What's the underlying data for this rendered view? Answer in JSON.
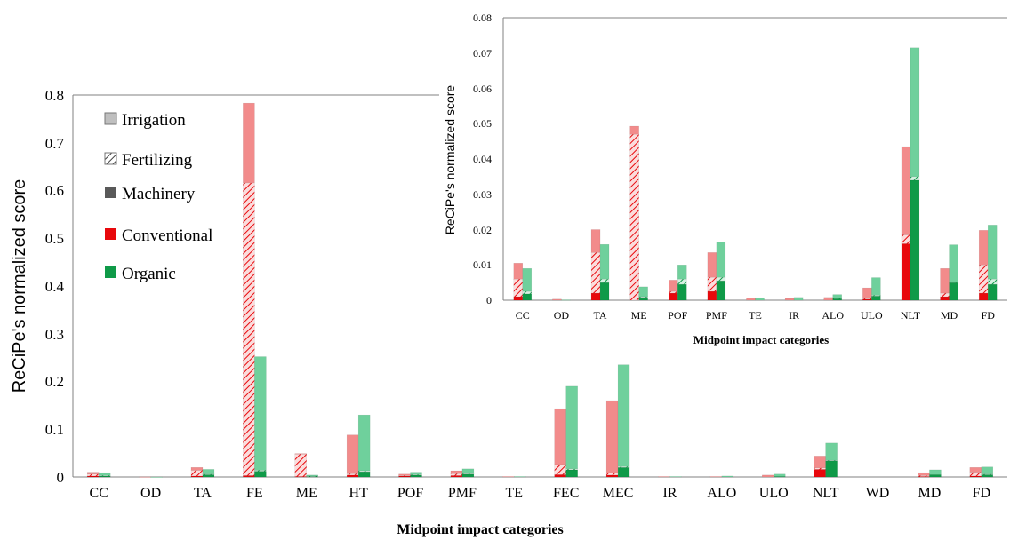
{
  "colors": {
    "conv_machinery": "#e8080c",
    "conv_fert": "#f26f6f",
    "conv_irr": "#f28b8b",
    "org_machinery": "#0f9a48",
    "org_fert": "#47bf7d",
    "org_irr": "#6fd09c",
    "legend_irrigation": "#bfbfbf",
    "legend_machinery": "#595959"
  },
  "legend": {
    "irrigation": "Irrigation",
    "fertilizing": "Fertilizing",
    "machinery": "Machinery",
    "conventional": "Conventional",
    "organic": "Organic"
  },
  "chart_data": [
    {
      "type": "bar",
      "stacked": true,
      "xlabel": "Midpoint impact categories",
      "ylabel": "ReCiPe's normalized score",
      "ylim": [
        0,
        0.8
      ],
      "yticks": [
        "0",
        "0.1",
        "0.2",
        "0.3",
        "0.4",
        "0.5",
        "0.6",
        "0.7",
        "0.8"
      ],
      "categories": [
        "CC",
        "OD",
        "TA",
        "FE",
        "ME",
        "HT",
        "POF",
        "PMF",
        "TE",
        "FEC",
        "MEC",
        "IR",
        "ALO",
        "ULO",
        "NLT",
        "WD",
        "MD",
        "FD"
      ],
      "series": [
        {
          "name": "Conventional",
          "machinery": [
            0.002,
            0,
            0.002,
            0.003,
            0.001,
            0.004,
            0.002,
            0.003,
            0,
            0.005,
            0.004,
            0,
            0,
            0,
            0.016,
            0,
            0.001,
            0.002
          ],
          "fertilizing": [
            0.004,
            0,
            0.012,
            0.613,
            0.047,
            0.003,
            0.001,
            0.004,
            0,
            0.021,
            0.005,
            0,
            0,
            0,
            0.003,
            0,
            0.002,
            0.008
          ],
          "irrigation": [
            0.004,
            0.0003,
            0.006,
            0.167,
            0.001,
            0.081,
            0.003,
            0.006,
            0.001,
            0.117,
            0.151,
            0.001,
            0.001,
            0.004,
            0.025,
            0,
            0.006,
            0.01
          ]
        },
        {
          "name": "Organic",
          "machinery": [
            0.002,
            0,
            0.005,
            0.012,
            0.001,
            0.011,
            0.004,
            0.006,
            0,
            0.015,
            0.02,
            0,
            0,
            0.001,
            0.034,
            0,
            0.005,
            0.005
          ],
          "fertilizing": [
            0.001,
            0,
            0.001,
            0.002,
            0.001,
            0.002,
            0.001,
            0.001,
            0,
            0.002,
            0.002,
            0,
            0,
            0,
            0.001,
            0,
            0,
            0.001
          ],
          "irrigation": [
            0.006,
            0.0001,
            0.01,
            0.238,
            0.002,
            0.117,
            0.005,
            0.01,
            0.001,
            0.173,
            0.213,
            0.001,
            0.002,
            0.005,
            0.036,
            0,
            0.01,
            0.015
          ]
        }
      ]
    },
    {
      "type": "bar",
      "stacked": true,
      "xlabel": "Midpoint impact categories",
      "ylabel": "ReCiPe's normalized score",
      "ylim": [
        0,
        0.08
      ],
      "yticks": [
        "0",
        "0.01",
        "0.02",
        "0.03",
        "0.04",
        "0.05",
        "0.06",
        "0.07",
        "0.08"
      ],
      "categories": [
        "CC",
        "OD",
        "TA",
        "ME",
        "POF",
        "PMF",
        "TE",
        "IR",
        "ALO",
        "ULO",
        "NLT",
        "MD",
        "FD"
      ],
      "series": [
        {
          "name": "Conventional",
          "machinery": [
            0.001,
            0,
            0.002,
            0,
            0.002,
            0.0025,
            0,
            0,
            0,
            0.0003,
            0.016,
            0.001,
            0.002
          ],
          "fertilizing": [
            0.005,
            0,
            0.0115,
            0.047,
            0.0005,
            0.004,
            0,
            0,
            0,
            0.0002,
            0.0025,
            0.001,
            0.008
          ],
          "irrigation": [
            0.0045,
            0.0003,
            0.0065,
            0.0023,
            0.0032,
            0.007,
            0.0006,
            0.0005,
            0.0008,
            0.003,
            0.025,
            0.007,
            0.0098
          ]
        },
        {
          "name": "Organic",
          "machinery": [
            0.0018,
            0,
            0.005,
            0.0008,
            0.0045,
            0.0055,
            0,
            0,
            0.0005,
            0.0012,
            0.034,
            0.005,
            0.0045
          ],
          "fertilizing": [
            0.0007,
            0,
            0.001,
            0.0002,
            0.0015,
            0.001,
            0,
            0,
            0.0001,
            0.0002,
            0.001,
            0.0002,
            0.0015
          ],
          "irrigation": [
            0.0065,
            0.0001,
            0.0098,
            0.0028,
            0.004,
            0.01,
            0.0007,
            0.0008,
            0.001,
            0.005,
            0.0365,
            0.0105,
            0.0153
          ]
        }
      ]
    }
  ]
}
